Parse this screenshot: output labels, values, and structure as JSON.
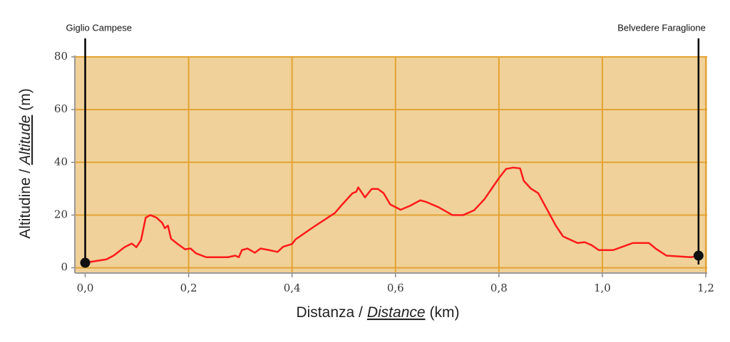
{
  "chart_data": {
    "type": "line",
    "xlabel_parts": [
      "Distanza /",
      "Distance",
      "(km)"
    ],
    "ylabel_parts": [
      "Altitudine /",
      "Altitude",
      "(m)"
    ],
    "annotations": [
      {
        "text": "Giglio Campese",
        "x": 0
      },
      {
        "text": "Belvedere Faraglione",
        "x": 1.186
      }
    ],
    "x": [
      0,
      0.041,
      0.055,
      0.076,
      0.09,
      0.099,
      0.108,
      0.117,
      0.126,
      0.138,
      0.149,
      0.154,
      0.16,
      0.166,
      0.179,
      0.193,
      0.204,
      0.214,
      0.234,
      0.276,
      0.29,
      0.297,
      0.303,
      0.314,
      0.328,
      0.339,
      0.356,
      0.372,
      0.383,
      0.4,
      0.407,
      0.441,
      0.483,
      0.497,
      0.517,
      0.524,
      0.528,
      0.541,
      0.554,
      0.566,
      0.577,
      0.59,
      0.61,
      0.628,
      0.648,
      0.659,
      0.683,
      0.71,
      0.731,
      0.752,
      0.772,
      0.8,
      0.814,
      0.828,
      0.841,
      0.848,
      0.862,
      0.876,
      0.91,
      0.924,
      0.952,
      0.966,
      0.979,
      0.993,
      1.021,
      1.048,
      1.059,
      1.09,
      1.103,
      1.124,
      1.172,
      1.186
    ],
    "values": [
      1.9,
      3.2,
      4.6,
      7.8,
      9.2,
      7.8,
      10.5,
      19,
      20,
      19,
      17,
      15,
      16,
      11,
      9,
      7,
      7.3,
      5.5,
      4,
      4,
      4.6,
      4,
      6.7,
      7.3,
      5.7,
      7.3,
      6.7,
      6,
      8,
      9,
      10.8,
      15.4,
      20.8,
      24,
      28.3,
      28.8,
      30.5,
      26.7,
      29.9,
      29.9,
      28.3,
      24,
      22,
      23.5,
      25.6,
      25,
      23,
      20,
      20,
      21.8,
      26,
      34,
      37.5,
      38,
      37.7,
      33,
      30,
      28.3,
      16,
      11.9,
      9.4,
      9.7,
      8.6,
      6.7,
      6.7,
      8.6,
      9.4,
      9.4,
      7.3,
      4.6,
      4,
      4.6
    ],
    "color": "#ff1a1a",
    "plot_color": "#f0d199",
    "grid_color": "#e3a334",
    "xlim": [
      -0.02,
      1.2
    ],
    "ylim": [
      -2,
      80
    ],
    "xticks": [
      {
        "value": 0,
        "label": "0,0"
      },
      {
        "value": 0.2,
        "label": "0,2"
      },
      {
        "value": 0.4,
        "label": "0,4"
      },
      {
        "value": 0.6,
        "label": "0,6"
      },
      {
        "value": 0.8,
        "label": "0,8"
      },
      {
        "value": 1.0,
        "label": "1,0"
      },
      {
        "value": 1.2,
        "label": "1,2"
      }
    ],
    "yticks": [
      0,
      20,
      40,
      60,
      80
    ],
    "grid": true
  }
}
